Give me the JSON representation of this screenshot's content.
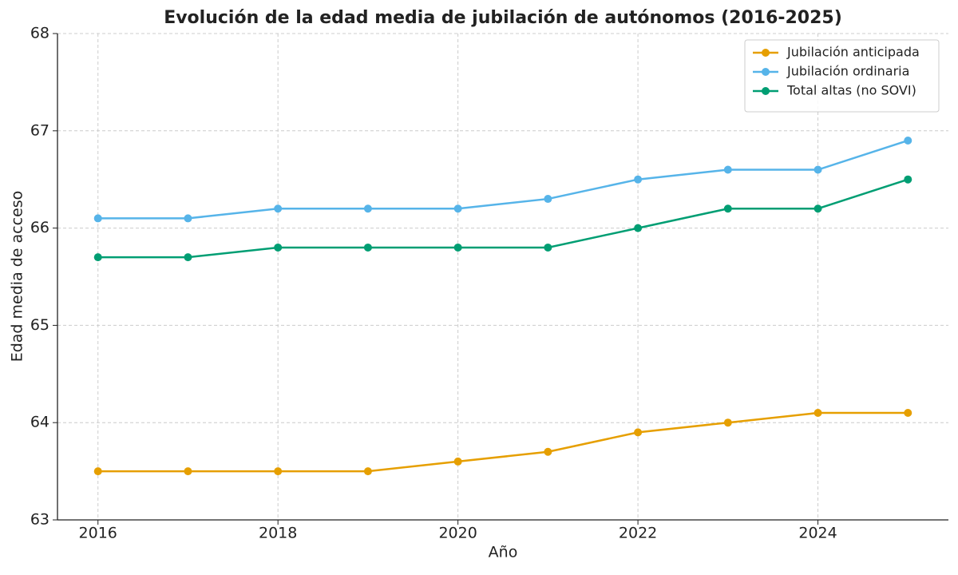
{
  "chart_data": {
    "type": "line",
    "title": "Evolución de la edad media de jubilación de autónomos (2016-2025)",
    "x_label": "Año",
    "y_label": "Edad media de acceso",
    "x": [
      2016,
      2017,
      2018,
      2019,
      2020,
      2021,
      2022,
      2023,
      2024,
      2025
    ],
    "series": [
      {
        "name": "Jubilación anticipada",
        "color": "#E69F00",
        "values": [
          63.5,
          63.5,
          63.5,
          63.5,
          63.6,
          63.7,
          63.9,
          64.0,
          64.1,
          64.1
        ]
      },
      {
        "name": "Jubilación ordinaria",
        "color": "#56B4E9",
        "values": [
          66.1,
          66.1,
          66.2,
          66.2,
          66.2,
          66.3,
          66.5,
          66.6,
          66.6,
          66.9
        ]
      },
      {
        "name": "Total altas (no SOVI)",
        "color": "#009E73",
        "values": [
          65.7,
          65.7,
          65.8,
          65.8,
          65.8,
          65.8,
          66.0,
          66.2,
          66.2,
          66.5
        ]
      }
    ],
    "xlim": [
      2015.55,
      2025.45
    ],
    "xticks": [
      2016,
      2018,
      2020,
      2022,
      2024
    ],
    "ylim": [
      63,
      68
    ],
    "yticks": [
      63,
      64,
      65,
      66,
      67,
      68
    ],
    "grid": true,
    "legend": "upper-right"
  }
}
